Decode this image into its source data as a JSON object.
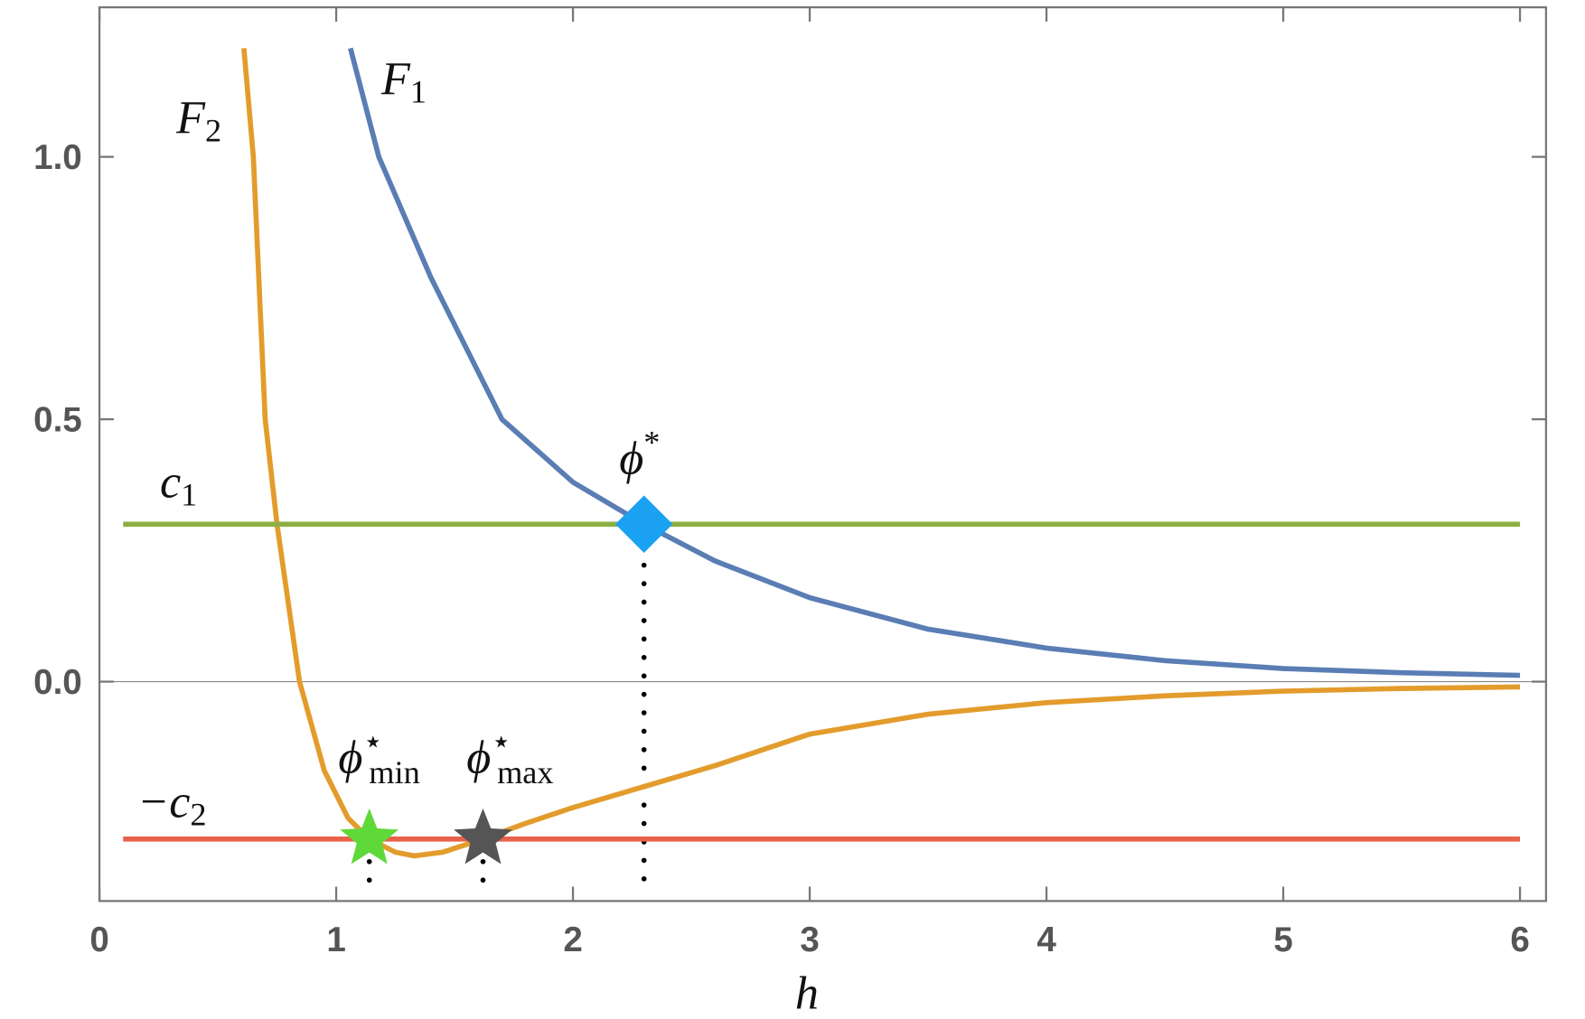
{
  "chart_data": {
    "type": "line",
    "x_label": "h",
    "xlim": [
      0,
      6.11
    ],
    "ylim": [
      -0.418,
      1.285
    ],
    "xticks": [
      0,
      1,
      2,
      3,
      4,
      5,
      6
    ],
    "yticks": [
      {
        "value": 0,
        "label": "0.0"
      },
      0.5,
      {
        "value": 1,
        "label": "1.0"
      }
    ],
    "origin_line": true,
    "series": [
      {
        "name": "F1",
        "color": "#5a7db4",
        "x": [
          1.06,
          1.18,
          1.4,
          1.7,
          2.0,
          2.3,
          2.6,
          3.0,
          3.5,
          4.0,
          4.5,
          5.0,
          5.5,
          6.0
        ],
        "values": [
          1.207,
          1.0,
          0.77,
          0.5,
          0.38,
          0.3,
          0.23,
          0.16,
          0.1,
          0.064,
          0.04,
          0.025,
          0.017,
          0.012
        ]
      },
      {
        "name": "F2",
        "color": "#e39c2c",
        "x": [
          0.61,
          0.65,
          0.7,
          0.75,
          0.845,
          0.95,
          1.05,
          1.14,
          1.25,
          1.33,
          1.45,
          1.62,
          1.8,
          2.0,
          2.3,
          2.6,
          3.0,
          3.5,
          4.0,
          4.5,
          5.0,
          5.5,
          6.0
        ],
        "values": [
          1.207,
          1.0,
          0.5,
          0.3,
          0,
          -0.17,
          -0.26,
          -0.3,
          -0.325,
          -0.332,
          -0.325,
          -0.3,
          -0.27,
          -0.24,
          -0.2,
          -0.16,
          -0.1,
          -0.062,
          -0.04,
          -0.027,
          -0.018,
          -0.013,
          -0.01
        ]
      },
      {
        "name": "c1",
        "color": "#8daf42",
        "x": [
          0.1,
          6.0
        ],
        "values": [
          0.3,
          0.3
        ]
      },
      {
        "name": "-c2",
        "color": "#e8614a",
        "x": [
          0.1,
          6.0
        ],
        "values": [
          -0.3,
          -0.3
        ]
      }
    ],
    "markers": [
      {
        "shape": "diamond",
        "color": "#1ba1f2",
        "x": 2.3,
        "y": 0.3
      },
      {
        "shape": "star",
        "color": "#5fd93a",
        "x": 1.14,
        "y": -0.3
      },
      {
        "shape": "star",
        "color": "#555555",
        "x": 1.62,
        "y": -0.3
      }
    ],
    "drop_lines": true,
    "annotations": {
      "F2": {
        "main": "F",
        "sub": "2"
      },
      "F1": {
        "main": "F",
        "sub": "1"
      },
      "c1": {
        "main": "c",
        "sub": "1"
      },
      "minus_c2": {
        "main": "−c",
        "sub": "2"
      },
      "phi_star": {
        "main": "ϕ",
        "sup": "*"
      },
      "phi_min": {
        "main": "ϕ",
        "sup": "⋆",
        "sub": "min"
      },
      "phi_max": {
        "main": "ϕ",
        "sup": "⋆",
        "sub": "max"
      }
    }
  }
}
